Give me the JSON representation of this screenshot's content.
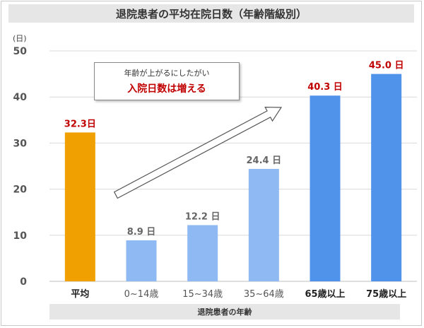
{
  "title": "退院患者の平均在院日数（年齢階級別）",
  "callout": {
    "line1": "年齢が上がるにしたがい",
    "line2": "入院日数は増える"
  },
  "chart_data": {
    "type": "bar",
    "unit_label": "(日)",
    "xlabel": "退院患者の年齢",
    "ylim": [
      0,
      50
    ],
    "yticks": [
      0,
      10,
      20,
      30,
      40,
      50
    ],
    "grid": true,
    "categories": [
      "平均",
      "0~14歳",
      "15~34歳",
      "35~64歳",
      "65歳以上",
      "75歳以上"
    ],
    "values": [
      32.3,
      8.9,
      12.2,
      24.4,
      40.3,
      45.0
    ],
    "value_labels": [
      "32.3日",
      "8.9 日",
      "12.2 日",
      "24.4 日",
      "40.3 日",
      "45.0 日"
    ],
    "bar_colors": [
      "#f0a000",
      "#8fb9f2",
      "#8fb9f2",
      "#8fb9f2",
      "#4f93ea",
      "#4f93ea"
    ],
    "label_colors": [
      "#c00000",
      "#666666",
      "#666666",
      "#666666",
      "#c00000",
      "#c00000"
    ],
    "category_bold": [
      true,
      false,
      false,
      false,
      true,
      true
    ]
  }
}
